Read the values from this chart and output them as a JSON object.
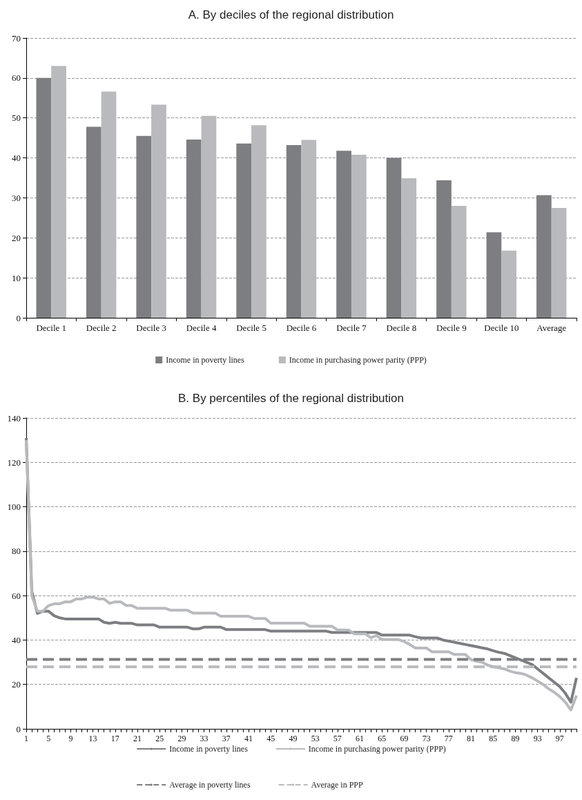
{
  "chart_data": [
    {
      "type": "bar",
      "title": "A. By deciles of the regional distribution",
      "categories": [
        "Decile 1",
        "Decile 2",
        "Decile 3",
        "Decile 4",
        "Decile 5",
        "Decile 6",
        "Decile 7",
        "Decile 8",
        "Decile 9",
        "Decile 10",
        "Average"
      ],
      "series": [
        {
          "name": "Income in poverty lines",
          "color": "#7d7e82",
          "values": [
            60,
            47.8,
            45.5,
            44.6,
            43.6,
            43.2,
            41.8,
            40,
            34.4,
            21.4,
            30.7
          ]
        },
        {
          "name": "Income in purchasing power parity (PPP)",
          "color": "#b9babe",
          "values": [
            63,
            56.6,
            53.3,
            50.5,
            48.2,
            44.5,
            40.8,
            34.9,
            28,
            16.8,
            27.5
          ]
        }
      ],
      "ylim": [
        0,
        70
      ],
      "yticks": [
        0,
        10,
        20,
        30,
        40,
        50,
        60,
        70
      ],
      "grid": "y",
      "legend": "bottom"
    },
    {
      "type": "line",
      "title": "B. By percentiles of the regional distribution",
      "categories": [
        "1",
        null,
        null,
        null,
        "5",
        null,
        null,
        null,
        "9",
        null,
        null,
        null,
        "13",
        null,
        null,
        null,
        "17",
        null,
        null,
        null,
        "21",
        null,
        null,
        null,
        "25",
        null,
        null,
        null,
        "29",
        null,
        null,
        null,
        "33",
        null,
        null,
        null,
        "37",
        null,
        null,
        null,
        "41",
        null,
        null,
        null,
        "45",
        null,
        null,
        null,
        "49",
        null,
        null,
        null,
        "53",
        null,
        null,
        null,
        "57",
        null,
        null,
        null,
        "61",
        null,
        null,
        null,
        "65",
        null,
        null,
        null,
        "69",
        null,
        null,
        null,
        "73",
        null,
        null,
        null,
        "77",
        null,
        null,
        null,
        "81",
        null,
        null,
        null,
        "85",
        null,
        null,
        null,
        "89",
        null,
        null,
        null,
        "93",
        null,
        null,
        null,
        "97",
        null,
        null,
        null
      ],
      "series": [
        {
          "name": "Income in poverty lines",
          "color": "#7d7e82",
          "line_style": "solid",
          "values": [
            131,
            62,
            52,
            53,
            53,
            51,
            50,
            49.5,
            49.5,
            49.5,
            49.5,
            49.5,
            49.5,
            49.5,
            48,
            47.5,
            48,
            47.5,
            47.5,
            47.5,
            46.8,
            46.8,
            46.8,
            46.8,
            45.8,
            45.8,
            45.8,
            45.8,
            45.8,
            45.8,
            45,
            45,
            45.8,
            45.8,
            45.8,
            45.8,
            44.7,
            44.7,
            44.7,
            44.7,
            44.7,
            44.7,
            44.7,
            44.7,
            44,
            44,
            44,
            44,
            44,
            44,
            44,
            44,
            44,
            44,
            44,
            43.4,
            43.4,
            43.4,
            43.4,
            43.4,
            43.4,
            43.4,
            43.4,
            43.4,
            42.2,
            42.2,
            42.2,
            42.2,
            42.2,
            42.2,
            41.5,
            40.9,
            40.9,
            40.9,
            40.9,
            40,
            39.5,
            39,
            38.5,
            38,
            37.5,
            37,
            36.5,
            36,
            35.2,
            34.5,
            34,
            33,
            32,
            31,
            30,
            29,
            27,
            25,
            23,
            21,
            19,
            16,
            12,
            23
          ]
        },
        {
          "name": "Income in purchasing power parity (PPP)",
          "color": "#b9babe",
          "line_style": "solid",
          "values": [
            130,
            60,
            53,
            53,
            55.5,
            56.3,
            56.3,
            57.2,
            57.2,
            58.5,
            58.5,
            59.3,
            59.3,
            58.5,
            58.5,
            56.5,
            57.2,
            57.2,
            55.5,
            55.5,
            54.3,
            54.3,
            54.3,
            54.3,
            54.3,
            54.3,
            53.4,
            53.4,
            53.4,
            53.4,
            52.1,
            52.1,
            52.1,
            52.1,
            52.1,
            50.7,
            50.7,
            50.7,
            50.7,
            50.7,
            50.7,
            49.7,
            49.7,
            49.7,
            47.6,
            47.6,
            47.6,
            47.6,
            47.6,
            47.6,
            47.6,
            46.2,
            46.2,
            46.2,
            46.2,
            46.2,
            44.5,
            44.5,
            44.5,
            42.8,
            42.8,
            42.8,
            41,
            42,
            40.2,
            40.2,
            40.2,
            40.2,
            39.3,
            38,
            36.4,
            36.4,
            36.4,
            34.7,
            34.7,
            34.7,
            34.7,
            33.5,
            33.5,
            33.5,
            31.2,
            30.5,
            30,
            28.7,
            28,
            27.5,
            27,
            26,
            25.3,
            25,
            24.2,
            23,
            21.5,
            20,
            18,
            16.5,
            14.5,
            12,
            8.5,
            15
          ]
        },
        {
          "name": "Average in poverty lines",
          "color": "#7d7e82",
          "line_style": "dashed",
          "values": [
            31.3,
            31.3,
            31.3,
            31.3,
            31.3,
            31.3,
            31.3,
            31.3,
            31.3,
            31.3,
            31.3,
            31.3,
            31.3,
            31.3,
            31.3,
            31.3,
            31.3,
            31.3,
            31.3,
            31.3,
            31.3,
            31.3,
            31.3,
            31.3,
            31.3,
            31.3,
            31.3,
            31.3,
            31.3,
            31.3,
            31.3,
            31.3,
            31.3,
            31.3,
            31.3,
            31.3,
            31.3,
            31.3,
            31.3,
            31.3,
            31.3,
            31.3,
            31.3,
            31.3,
            31.3,
            31.3,
            31.3,
            31.3,
            31.3,
            31.3,
            31.3,
            31.3,
            31.3,
            31.3,
            31.3,
            31.3,
            31.3,
            31.3,
            31.3,
            31.3,
            31.3,
            31.3,
            31.3,
            31.3,
            31.3,
            31.3,
            31.3,
            31.3,
            31.3,
            31.3,
            31.3,
            31.3,
            31.3,
            31.3,
            31.3,
            31.3,
            31.3,
            31.3,
            31.3,
            31.3,
            31.3,
            31.3,
            31.3,
            31.3,
            31.3,
            31.3,
            31.3,
            31.3,
            31.3,
            31.3,
            31.3,
            31.3,
            31.3,
            31.3,
            31.3,
            31.3,
            31.3,
            31.3,
            31.3,
            31.3
          ]
        },
        {
          "name": "Average in PPP",
          "color": "#b9babe",
          "line_style": "dashed",
          "values": [
            27.9,
            27.9,
            27.9,
            27.9,
            27.9,
            27.9,
            27.9,
            27.9,
            27.9,
            27.9,
            27.9,
            27.9,
            27.9,
            27.9,
            27.9,
            27.9,
            27.9,
            27.9,
            27.9,
            27.9,
            27.9,
            27.9,
            27.9,
            27.9,
            27.9,
            27.9,
            27.9,
            27.9,
            27.9,
            27.9,
            27.9,
            27.9,
            27.9,
            27.9,
            27.9,
            27.9,
            27.9,
            27.9,
            27.9,
            27.9,
            27.9,
            27.9,
            27.9,
            27.9,
            27.9,
            27.9,
            27.9,
            27.9,
            27.9,
            27.9,
            27.9,
            27.9,
            27.9,
            27.9,
            27.9,
            27.9,
            27.9,
            27.9,
            27.9,
            27.9,
            27.9,
            27.9,
            27.9,
            27.9,
            27.9,
            27.9,
            27.9,
            27.9,
            27.9,
            27.9,
            27.9,
            27.9,
            27.9,
            27.9,
            27.9,
            27.9,
            27.9,
            27.9,
            27.9,
            27.9,
            27.9,
            27.9,
            27.9,
            27.9,
            27.9,
            27.9,
            27.9,
            27.9,
            27.9,
            27.9,
            27.9,
            27.9,
            27.9,
            27.9,
            27.9,
            27.9,
            27.9,
            27.9,
            27.9,
            27.9
          ]
        }
      ],
      "ylim": [
        0,
        140
      ],
      "yticks": [
        0,
        20,
        40,
        60,
        80,
        100,
        120,
        140
      ],
      "grid": "y",
      "legend": "bottom",
      "marker": "none"
    }
  ]
}
